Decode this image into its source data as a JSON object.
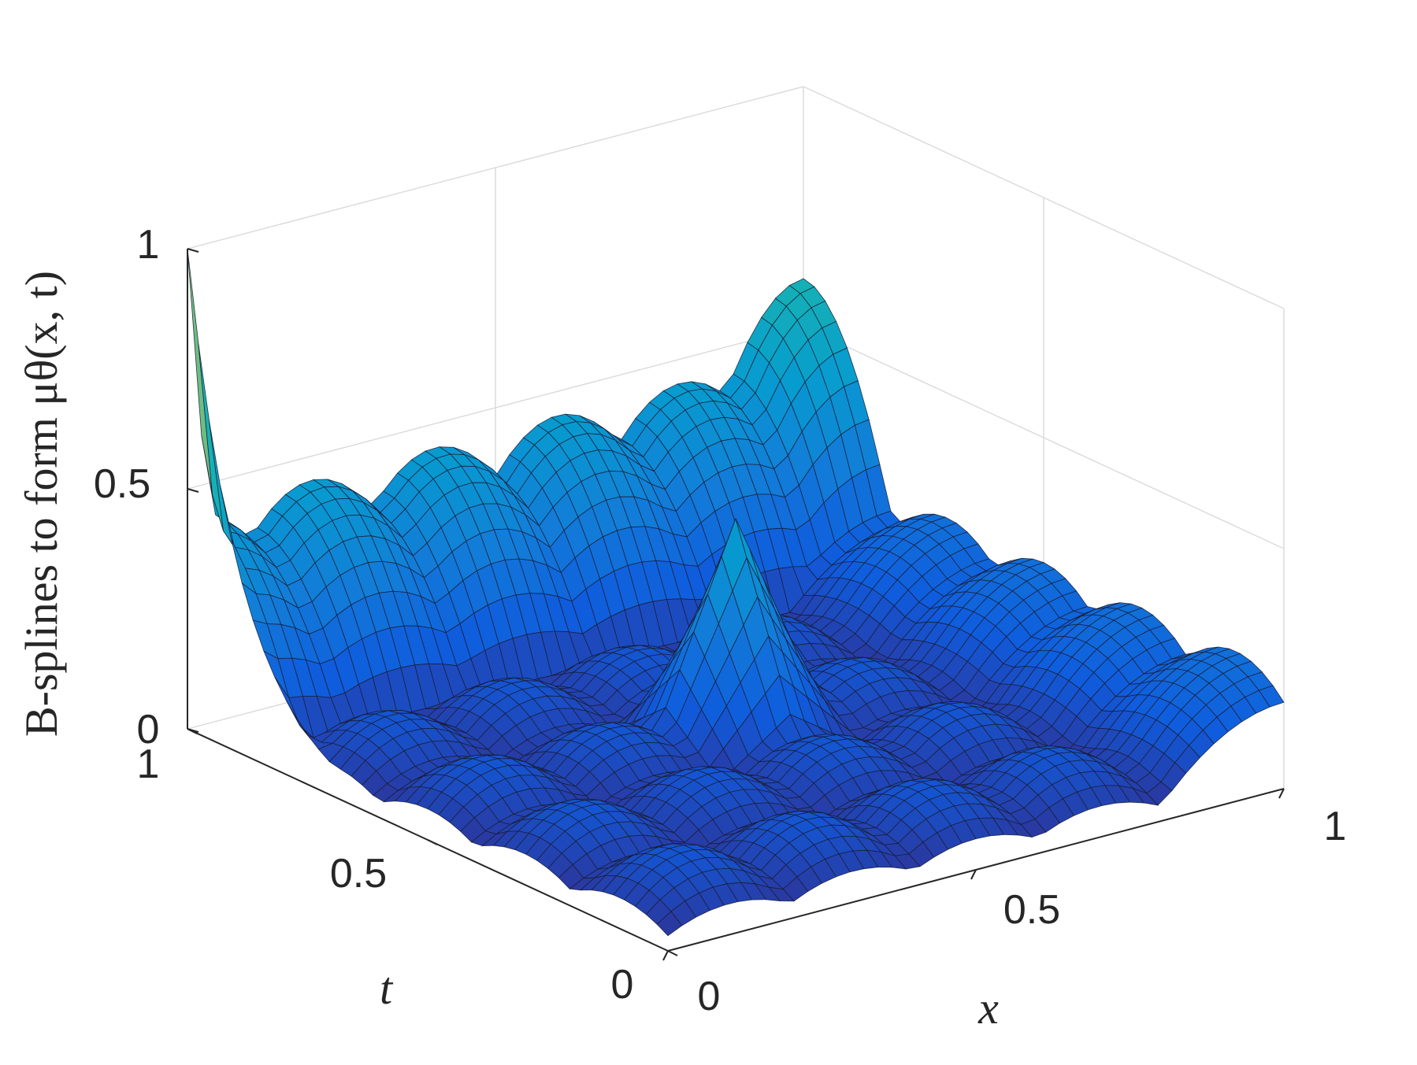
{
  "chart_data": {
    "type": "surface",
    "xlabel": "x",
    "ylabel": "t",
    "zlabel": "B-splines to form μθ(x, t)",
    "xlim": [
      0,
      1
    ],
    "ylim": [
      0,
      1
    ],
    "zlim": [
      0,
      1
    ],
    "xticks": [
      "0",
      "0.5",
      "1"
    ],
    "yticks": [
      "0",
      "0.5",
      "1"
    ],
    "zticks": [
      "0",
      "0.5",
      "1"
    ],
    "grid": true,
    "colormap": "parula",
    "series": [
      {
        "kind": "corner-peak",
        "peak": {
          "x": 0,
          "t": 1,
          "z": 1.0
        }
      },
      {
        "kind": "center-peak",
        "peak": {
          "x": 0.5,
          "t": 0.5,
          "z": 0.5
        }
      },
      {
        "kind": "ridge-along-x-at-t1",
        "amplitudes": [
          0.45,
          0.45,
          0.45,
          0.45,
          0.45,
          0.6
        ]
      },
      {
        "kind": "ridge-along-t-at-x1",
        "amplitudes": [
          0.24,
          0.24,
          0.24,
          0.24,
          0.24
        ]
      },
      {
        "kind": "interior-bumps",
        "amplitude": 0.24
      }
    ]
  }
}
